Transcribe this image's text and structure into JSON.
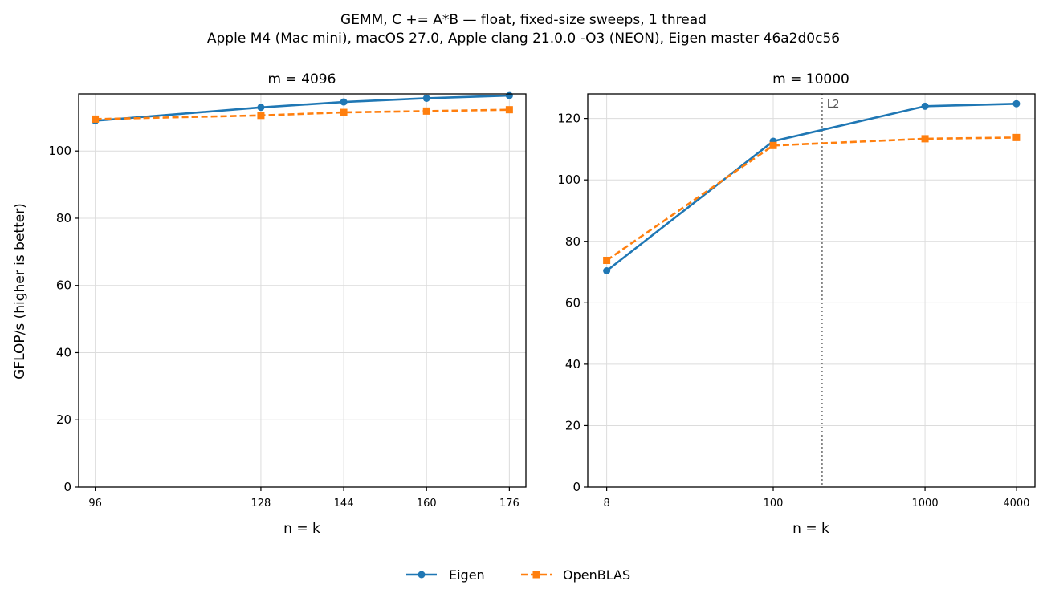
{
  "figure": {
    "title_line1": "GEMM, C += A*B — float, fixed-size sweeps, 1 thread",
    "title_line2": "Apple M4 (Mac mini), macOS 27.0, Apple clang 21.0.0 -O3 (NEON), Eigen master 46a2d0c56",
    "ylabel": "GFLOP/s (higher is better)"
  },
  "legend": {
    "placement": "bottom-center",
    "entries": [
      {
        "label": "Eigen",
        "color": "#1f77b4",
        "marker": "circle",
        "line": "solid"
      },
      {
        "label": "OpenBLAS",
        "color": "#ff7f0e",
        "marker": "square",
        "line": "dashed"
      }
    ]
  },
  "chart_data": [
    {
      "type": "line",
      "title": "m = 4096",
      "xlabel": "n = k",
      "ylabel": "GFLOP/s (higher is better)",
      "x_scale": "linear",
      "x": [
        96,
        128,
        144,
        160,
        176
      ],
      "x_tick_labels": [
        "96",
        "128",
        "144",
        "160",
        "176"
      ],
      "xlim": [
        92.8,
        179.2
      ],
      "ylim": [
        0,
        117
      ],
      "y_ticks": [
        0,
        20,
        40,
        60,
        80,
        100
      ],
      "grid": true,
      "series": [
        {
          "name": "Eigen",
          "values": [
            109.0,
            113.0,
            114.6,
            115.7,
            116.5
          ],
          "color": "#1f77b4"
        },
        {
          "name": "OpenBLAS",
          "values": [
            109.5,
            110.6,
            111.5,
            111.9,
            112.3
          ],
          "color": "#ff7f0e"
        }
      ]
    },
    {
      "type": "line",
      "title": "m = 10000",
      "xlabel": "n = k",
      "ylabel": "",
      "x_scale": "log",
      "x": [
        8,
        100,
        1000,
        4000
      ],
      "x_tick_labels": [
        "8",
        "100",
        "1000",
        "4000"
      ],
      "xlim": [
        6.0,
        5300
      ],
      "ylim": [
        0,
        128
      ],
      "y_ticks": [
        0,
        20,
        40,
        60,
        80,
        100,
        120
      ],
      "grid": true,
      "series": [
        {
          "name": "Eigen",
          "values": [
            70.4,
            112.6,
            124.0,
            124.8
          ],
          "color": "#1f77b4"
        },
        {
          "name": "OpenBLAS",
          "values": [
            73.8,
            111.2,
            113.4,
            113.8
          ],
          "color": "#ff7f0e"
        }
      ],
      "annotations": [
        {
          "text": "L2",
          "x": 210,
          "style": "dotted-vertical-line",
          "color": "#555555"
        }
      ]
    }
  ]
}
